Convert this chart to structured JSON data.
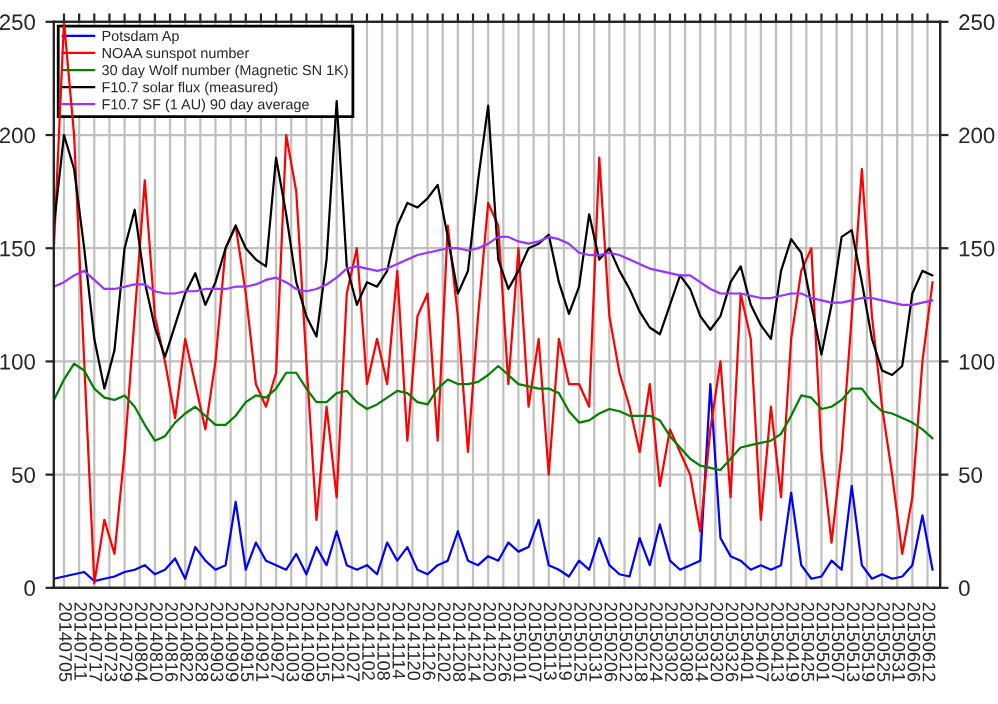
{
  "chart_data": {
    "type": "line",
    "x": [
      "2014-07-01",
      "2014-07-05",
      "2014-07-09",
      "2014-07-13",
      "2014-07-17",
      "2014-07-21",
      "2014-07-25",
      "2014-07-29",
      "2014-08-02",
      "2014-08-06",
      "2014-08-10",
      "2014-08-14",
      "2014-08-18",
      "2014-08-22",
      "2014-08-26",
      "2014-08-30",
      "2014-09-03",
      "2014-09-07",
      "2014-09-11",
      "2014-09-15",
      "2014-09-19",
      "2014-09-23",
      "2014-09-27",
      "2014-10-01",
      "2014-10-05",
      "2014-10-09",
      "2014-10-13",
      "2014-10-17",
      "2014-10-21",
      "2014-10-25",
      "2014-10-29",
      "2014-11-02",
      "2014-11-06",
      "2014-11-10",
      "2014-11-14",
      "2014-11-18",
      "2014-11-22",
      "2014-11-26",
      "2014-11-30",
      "2014-12-04",
      "2014-12-08",
      "2014-12-12",
      "2014-12-16",
      "2014-12-20",
      "2014-12-24",
      "2014-12-28",
      "2015-01-01",
      "2015-01-05",
      "2015-01-09",
      "2015-01-13",
      "2015-01-17",
      "2015-01-21",
      "2015-01-25",
      "2015-01-29",
      "2015-02-02",
      "2015-02-06",
      "2015-02-10",
      "2015-02-14",
      "2015-02-18",
      "2015-02-22",
      "2015-02-26",
      "2015-03-02",
      "2015-03-06",
      "2015-03-10",
      "2015-03-14",
      "2015-03-18",
      "2015-03-22",
      "2015-03-26",
      "2015-03-30",
      "2015-04-03",
      "2015-04-07",
      "2015-04-11",
      "2015-04-15",
      "2015-04-19",
      "2015-04-23",
      "2015-04-27",
      "2015-05-01",
      "2015-05-05",
      "2015-05-09",
      "2015-05-13",
      "2015-05-17",
      "2015-05-21",
      "2015-05-25",
      "2015-05-29",
      "2015-06-02",
      "2015-06-06",
      "2015-06-10",
      "2015-06-14"
    ],
    "series": [
      {
        "name": "Potsdam Ap",
        "color": "#0000ff",
        "values": [
          4,
          5,
          6,
          7,
          3,
          4,
          5,
          7,
          8,
          10,
          6,
          8,
          13,
          4,
          18,
          12,
          8,
          10,
          38,
          8,
          20,
          12,
          10,
          8,
          15,
          6,
          18,
          10,
          25,
          10,
          8,
          10,
          6,
          20,
          12,
          18,
          8,
          6,
          10,
          12,
          25,
          12,
          10,
          14,
          12,
          20,
          16,
          18,
          30,
          10,
          8,
          5,
          12,
          8,
          22,
          10,
          6,
          5,
          22,
          10,
          28,
          12,
          8,
          10,
          12,
          90,
          22,
          14,
          12,
          8,
          10,
          8,
          10,
          42,
          10,
          4,
          5,
          12,
          8,
          45,
          10,
          4,
          6,
          4,
          5,
          10,
          32,
          8
        ]
      },
      {
        "name": "NOAA sunspot number",
        "color": "#ff0000",
        "values": [
          150,
          250,
          200,
          100,
          2,
          30,
          15,
          60,
          120,
          180,
          120,
          100,
          75,
          110,
          90,
          70,
          100,
          150,
          160,
          130,
          90,
          80,
          95,
          200,
          175,
          100,
          30,
          80,
          40,
          130,
          150,
          90,
          110,
          90,
          140,
          65,
          120,
          130,
          65,
          160,
          120,
          60,
          120,
          170,
          160,
          90,
          150,
          80,
          110,
          50,
          110,
          90,
          90,
          80,
          190,
          120,
          95,
          80,
          60,
          90,
          45,
          70,
          60,
          50,
          25,
          70,
          100,
          40,
          130,
          110,
          30,
          80,
          40,
          110,
          140,
          150,
          60,
          20,
          60,
          120,
          185,
          120,
          80,
          50,
          15,
          40,
          100,
          135
        ]
      },
      {
        "name": "30 day Wolf number (Magnetic SN 1K)",
        "color": "#008000",
        "values": [
          83,
          92,
          99,
          96,
          88,
          84,
          83,
          85,
          80,
          72,
          65,
          67,
          73,
          77,
          80,
          76,
          72,
          72,
          76,
          82,
          85,
          84,
          88,
          95,
          95,
          88,
          82,
          82,
          86,
          87,
          82,
          79,
          81,
          84,
          87,
          86,
          82,
          81,
          88,
          92,
          90,
          90,
          91,
          94,
          98,
          94,
          90,
          89,
          88,
          88,
          86,
          78,
          73,
          74,
          77,
          79,
          78,
          76,
          76,
          76,
          74,
          67,
          62,
          57,
          54,
          53,
          52,
          57,
          62,
          63,
          64,
          65,
          68,
          76,
          85,
          84,
          79,
          80,
          83,
          88,
          88,
          82,
          78,
          77,
          75,
          73,
          70,
          66
        ]
      },
      {
        "name": "F10.7 solar flux (measured)",
        "color": "#000000",
        "values": [
          160,
          200,
          185,
          150,
          110,
          88,
          105,
          150,
          167,
          135,
          115,
          102,
          116,
          130,
          139,
          125,
          135,
          150,
          160,
          150,
          145,
          142,
          190,
          165,
          135,
          120,
          111,
          145,
          215,
          142,
          125,
          135,
          133,
          140,
          160,
          170,
          168,
          172,
          178,
          155,
          130,
          140,
          180,
          213,
          145,
          132,
          140,
          150,
          152,
          156,
          135,
          121,
          133,
          165,
          145,
          150,
          140,
          132,
          122,
          115,
          112,
          125,
          138,
          132,
          120,
          114,
          120,
          135,
          142,
          125,
          116,
          110,
          140,
          154,
          148,
          125,
          103,
          125,
          155,
          158,
          135,
          110,
          96,
          94,
          98,
          130,
          140,
          138
        ]
      },
      {
        "name": "F10.7 SF (1 AU) 90 day average",
        "color": "#9933ff",
        "values": [
          133,
          135,
          138,
          140,
          136,
          132,
          132,
          133,
          134,
          134,
          131,
          130,
          130,
          131,
          131,
          132,
          132,
          132,
          133,
          133,
          134,
          136,
          137,
          135,
          132,
          131,
          132,
          134,
          137,
          141,
          142,
          141,
          140,
          141,
          143,
          145,
          147,
          148,
          149,
          150,
          150,
          149,
          150,
          152,
          155,
          155,
          153,
          152,
          153,
          155,
          154,
          152,
          148,
          147,
          147,
          148,
          147,
          145,
          143,
          141,
          140,
          139,
          138,
          138,
          135,
          132,
          130,
          130,
          130,
          129,
          128,
          128,
          129,
          130,
          130,
          128,
          127,
          126,
          126,
          127,
          128,
          128,
          127,
          126,
          125,
          125,
          126,
          127
        ]
      }
    ],
    "xlim": [
      "2014-07-01",
      "2015-06-17"
    ],
    "xticks": [
      {
        "value": "2014-07-05",
        "label": "20140705"
      },
      {
        "value": "2014-07-11",
        "label": "20140711"
      },
      {
        "value": "2014-07-17",
        "label": "20140717"
      },
      {
        "value": "2014-07-23",
        "label": "20140723"
      },
      {
        "value": "2014-07-29",
        "label": "20140729"
      },
      {
        "value": "2014-08-04",
        "label": "20140804"
      },
      {
        "value": "2014-08-10",
        "label": "20140810"
      },
      {
        "value": "2014-08-16",
        "label": "20140816"
      },
      {
        "value": "2014-08-22",
        "label": "20140822"
      },
      {
        "value": "2014-08-28",
        "label": "20140828"
      },
      {
        "value": "2014-09-03",
        "label": "20140903"
      },
      {
        "value": "2014-09-09",
        "label": "20140909"
      },
      {
        "value": "2014-09-15",
        "label": "20140915"
      },
      {
        "value": "2014-09-21",
        "label": "20140921"
      },
      {
        "value": "2014-09-27",
        "label": "20140927"
      },
      {
        "value": "2014-10-03",
        "label": "20141003"
      },
      {
        "value": "2014-10-09",
        "label": "20141009"
      },
      {
        "value": "2014-10-15",
        "label": "20141015"
      },
      {
        "value": "2014-10-21",
        "label": "20141021"
      },
      {
        "value": "2014-10-27",
        "label": "20141027"
      },
      {
        "value": "2014-11-02",
        "label": "20141102"
      },
      {
        "value": "2014-11-08",
        "label": "20141108"
      },
      {
        "value": "2014-11-14",
        "label": "20141114"
      },
      {
        "value": "2014-11-20",
        "label": "20141120"
      },
      {
        "value": "2014-11-26",
        "label": "20141126"
      },
      {
        "value": "2014-12-02",
        "label": "20141202"
      },
      {
        "value": "2014-12-08",
        "label": "20141208"
      },
      {
        "value": "2014-12-14",
        "label": "20141214"
      },
      {
        "value": "2014-12-20",
        "label": "20141220"
      },
      {
        "value": "2014-12-26",
        "label": "20141226"
      },
      {
        "value": "2015-01-01",
        "label": "20150101"
      },
      {
        "value": "2015-01-07",
        "label": "20150107"
      },
      {
        "value": "2015-01-13",
        "label": "20150113"
      },
      {
        "value": "2015-01-19",
        "label": "20150119"
      },
      {
        "value": "2015-01-25",
        "label": "20150125"
      },
      {
        "value": "2015-01-31",
        "label": "20150131"
      },
      {
        "value": "2015-02-06",
        "label": "20150206"
      },
      {
        "value": "2015-02-12",
        "label": "20150212"
      },
      {
        "value": "2015-02-18",
        "label": "20150218"
      },
      {
        "value": "2015-02-24",
        "label": "20150224"
      },
      {
        "value": "2015-03-02",
        "label": "20150302"
      },
      {
        "value": "2015-03-08",
        "label": "20150308"
      },
      {
        "value": "2015-03-14",
        "label": "20150314"
      },
      {
        "value": "2015-03-20",
        "label": "20150320"
      },
      {
        "value": "2015-03-26",
        "label": "20150326"
      },
      {
        "value": "2015-04-01",
        "label": "20150401"
      },
      {
        "value": "2015-04-07",
        "label": "20150407"
      },
      {
        "value": "2015-04-13",
        "label": "20150413"
      },
      {
        "value": "2015-04-19",
        "label": "20150419"
      },
      {
        "value": "2015-04-25",
        "label": "20150425"
      },
      {
        "value": "2015-05-01",
        "label": "20150501"
      },
      {
        "value": "2015-05-07",
        "label": "20150507"
      },
      {
        "value": "2015-05-13",
        "label": "20150513"
      },
      {
        "value": "2015-05-19",
        "label": "20150519"
      },
      {
        "value": "2015-05-25",
        "label": "20150525"
      },
      {
        "value": "2015-05-31",
        "label": "20150531"
      },
      {
        "value": "2015-06-06",
        "label": "20150606"
      },
      {
        "value": "2015-06-12",
        "label": "20150612"
      }
    ],
    "ylim": [
      0,
      250
    ],
    "yticks": [
      0,
      50,
      100,
      150,
      200,
      250
    ],
    "y2lim": [
      0,
      250
    ],
    "y2ticks": [
      0,
      50,
      100,
      150,
      200,
      250
    ],
    "grid": true,
    "legend": "top left",
    "marker": "none",
    "line_style": "solid"
  }
}
